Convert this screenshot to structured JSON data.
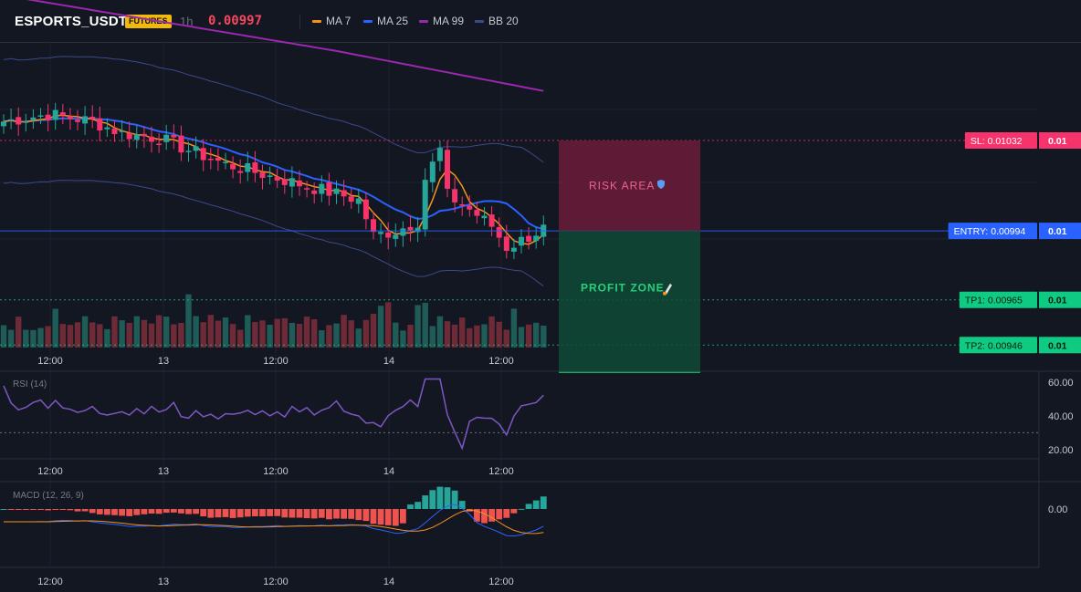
{
  "header": {
    "symbol": "ESPORTS_USDT",
    "badge": "FUTURES",
    "timeframe": "1h",
    "last_price": "0.00997",
    "legend": [
      {
        "label": "MA 7",
        "color": "#f7931a"
      },
      {
        "label": "MA 25",
        "color": "#2962ff"
      },
      {
        "label": "MA 99",
        "color": "#9c27b0"
      },
      {
        "label": "BB 20",
        "color": "#3b4a8a"
      }
    ]
  },
  "chart_data": [
    {
      "type": "candlestick",
      "x_labels": [
        "12:00",
        "13",
        "12:00",
        "14",
        "12:00"
      ],
      "y_range": [
        0.00935,
        0.01073
      ],
      "series": [
        {
          "name": "MA 7",
          "color": "#f7931a"
        },
        {
          "name": "MA 25",
          "color": "#2962ff"
        },
        {
          "name": "MA 99",
          "color": "#9c27b0"
        },
        {
          "name": "BB 20",
          "color": "#3b4a8a"
        }
      ],
      "levels": [
        {
          "key": "sl",
          "label": "SL: 0.01032",
          "side": "0.01",
          "value": 0.01032,
          "color": "#f6346b"
        },
        {
          "key": "entry",
          "label": "ENTRY: 0.00994",
          "side": "0.01",
          "value": 0.00994,
          "color": "#2962ff"
        },
        {
          "key": "tp1",
          "label": "TP1: 0.00965",
          "side": "0.01",
          "value": 0.00965,
          "color": "#0ecb81"
        },
        {
          "key": "tp2",
          "label": "TP2: 0.00946",
          "side": "0.01",
          "value": 0.00946,
          "color": "#0ecb81"
        }
      ],
      "zones": {
        "risk": "RISK AREA",
        "risk_icon": "shield-icon",
        "profit": "PROFIT ZONE",
        "profit_icon": "rocket-icon"
      },
      "volume": true
    },
    {
      "type": "line",
      "label": "RSI (14)",
      "y_ticks": [
        "60.00",
        "40.00",
        "20.00"
      ],
      "y_range": [
        15,
        65
      ],
      "threshold": 30,
      "x_labels": [
        "12:00",
        "13",
        "12:00",
        "14",
        "12:00"
      ],
      "color": "#7e57c2"
    },
    {
      "type": "bar",
      "label": "MACD (12, 26, 9)",
      "y_ticks": [
        "0.00"
      ],
      "x_labels": [
        "12:00",
        "13",
        "12:00",
        "14",
        "12:00"
      ],
      "colors": {
        "macd": "#2962ff",
        "signal": "#f7931a",
        "pos": "#26a69a",
        "neg": "#ef5350"
      }
    }
  ]
}
